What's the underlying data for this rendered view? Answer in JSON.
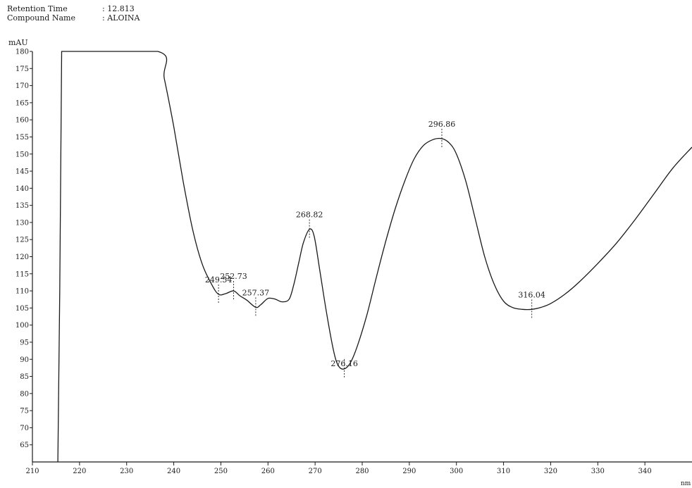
{
  "header": {
    "retention_label": "Retention Time",
    "retention_value": ": 12.813",
    "compound_label": "Compound Name",
    "compound_value": ": ALOINA"
  },
  "chart_data": {
    "type": "line",
    "title": "",
    "ylabel": "mAU",
    "xlabel": "nm",
    "xlim": [
      210,
      350
    ],
    "ylim": [
      60,
      180
    ],
    "x_ticks": [
      210,
      220,
      230,
      240,
      250,
      260,
      270,
      280,
      290,
      300,
      310,
      320,
      330,
      340
    ],
    "y_ticks": [
      65,
      70,
      75,
      80,
      85,
      90,
      95,
      100,
      105,
      110,
      115,
      120,
      125,
      130,
      135,
      140,
      145,
      150,
      155,
      160,
      165,
      170,
      175,
      180
    ],
    "grid": false,
    "line_color": "#1a1a1a",
    "series": [
      {
        "x": [
          215.4,
          215.8,
          216.2,
          236.6,
          238,
          240,
          242,
          244,
          246,
          248,
          249.5,
          251,
          252.7,
          254,
          255.5,
          257.4,
          258.5,
          260,
          261.5,
          263,
          264.5,
          265.5,
          266.5,
          267.5,
          268.8,
          269.8,
          271,
          272.5,
          274,
          275,
          276.2,
          277.5,
          279,
          281,
          283,
          285,
          287,
          289,
          291,
          293,
          295,
          296.9,
          298.5,
          300,
          302,
          304,
          306,
          308,
          310,
          312,
          314,
          316,
          318,
          320,
          323,
          326,
          330,
          334,
          338,
          342,
          346,
          350
        ],
        "y": [
          60,
          110,
          180,
          180,
          172,
          158,
          142,
          128,
          118,
          112,
          109,
          109.2,
          110,
          108.6,
          107.3,
          105.2,
          106,
          107.8,
          107.6,
          106.8,
          107.6,
          112,
          118,
          124,
          128,
          126,
          116,
          103,
          92,
          88,
          87.2,
          89,
          94,
          103,
          114,
          124.5,
          134,
          142,
          148.5,
          152.5,
          154.2,
          154.5,
          153.2,
          150,
          142,
          131,
          120,
          112,
          107,
          105.1,
          104.6,
          104.6,
          105.2,
          106.3,
          109,
          112.5,
          118,
          124,
          131,
          138.5,
          146,
          152
        ]
      }
    ],
    "peaks": [
      {
        "x": 249.5,
        "y": 109,
        "label": "249.54"
      },
      {
        "x": 252.7,
        "y": 110,
        "label": "252.73"
      },
      {
        "x": 257.4,
        "y": 105.2,
        "label": "257.37"
      },
      {
        "x": 268.8,
        "y": 128,
        "label": "268.82"
      },
      {
        "x": 276.2,
        "y": 87.2,
        "label": "276.16"
      },
      {
        "x": 296.9,
        "y": 154.5,
        "label": "296.86"
      },
      {
        "x": 316.0,
        "y": 104.6,
        "label": "316.04"
      }
    ]
  }
}
